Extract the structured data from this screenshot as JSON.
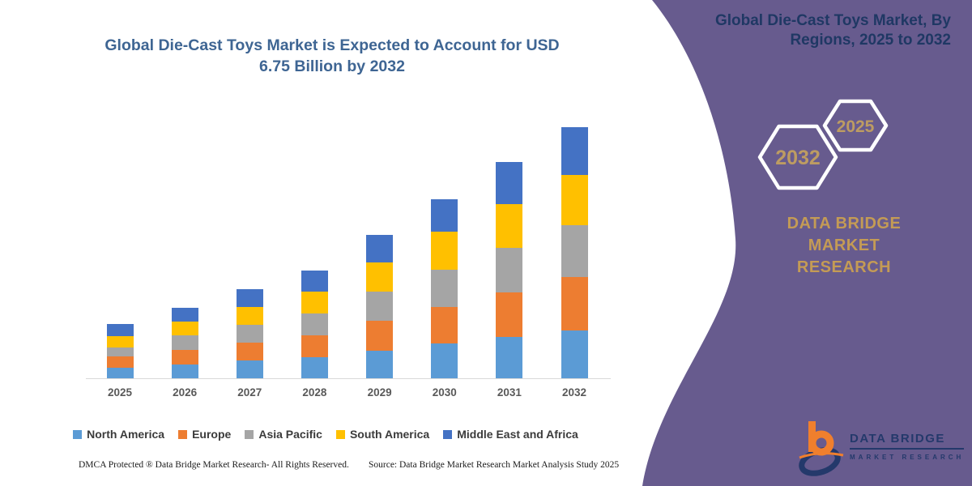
{
  "colors": {
    "panel_purple": "#675B8E",
    "chart_title": "#3E6593",
    "rp_title_navy": "#1F3864",
    "hex_year_gold": "#BD9C62",
    "brand_gold": "#C49B55",
    "logo_orange": "#F07F2D",
    "logo_navy": "#24396B",
    "axis_line": "#D9D9D9",
    "x_label_gray": "#595959"
  },
  "chart": {
    "title_line1": "Global Die-Cast Toys Market is Expected to Account for USD",
    "title_line2": "6.75 Billion by 2032"
  },
  "chart_data": {
    "type": "bar",
    "stacked": true,
    "title": "Global Die-Cast Toys Market is Expected to Account for USD 6.75 Billion by 2032",
    "unit": "USD Billion",
    "categories": [
      "2025",
      "2026",
      "2027",
      "2028",
      "2029",
      "2030",
      "2031",
      "2032"
    ],
    "series": [
      {
        "name": "North America",
        "color": "#5B9BD5",
        "values": [
          0.28,
          0.38,
          0.47,
          0.56,
          0.73,
          0.93,
          1.11,
          1.28
        ]
      },
      {
        "name": "Europe",
        "color": "#ED7D31",
        "values": [
          0.3,
          0.38,
          0.49,
          0.6,
          0.81,
          0.98,
          1.19,
          1.43
        ]
      },
      {
        "name": "Asia Pacific",
        "color": "#A5A5A5",
        "values": [
          0.25,
          0.39,
          0.48,
          0.58,
          0.78,
          1.0,
          1.21,
          1.4
        ]
      },
      {
        "name": "South America",
        "color": "#FFC000",
        "values": [
          0.3,
          0.38,
          0.47,
          0.58,
          0.79,
          1.02,
          1.16,
          1.34
        ]
      },
      {
        "name": "Middle East and Africa",
        "color": "#4472C4",
        "values": [
          0.32,
          0.37,
          0.49,
          0.58,
          0.74,
          0.87,
          1.13,
          1.3
        ]
      }
    ],
    "totals": [
      1.45,
      1.9,
      2.4,
      2.9,
      3.85,
      4.8,
      5.8,
      6.75
    ],
    "ylim": [
      0,
      7
    ],
    "yaxis_visible": false,
    "gridlines": false,
    "legend_position": "bottom"
  },
  "footer": {
    "dmca": "DMCA Protected ® Data Bridge Market Research-  All Rights Reserved.",
    "source": "Source: Data Bridge Market Research  Market Analysis Study 2025"
  },
  "right_panel": {
    "title_line1": "Global Die-Cast Toys Market, By",
    "title_line2": "Regions, 2025 to 2032",
    "hexagons": [
      {
        "label": "2032"
      },
      {
        "label": "2025"
      }
    ],
    "brand_line1": "DATA BRIDGE MARKET",
    "brand_line2": "RESEARCH",
    "logo": {
      "wordmark": "DATA BRIDGE",
      "subtext": "MARKET RESEARCH"
    }
  }
}
